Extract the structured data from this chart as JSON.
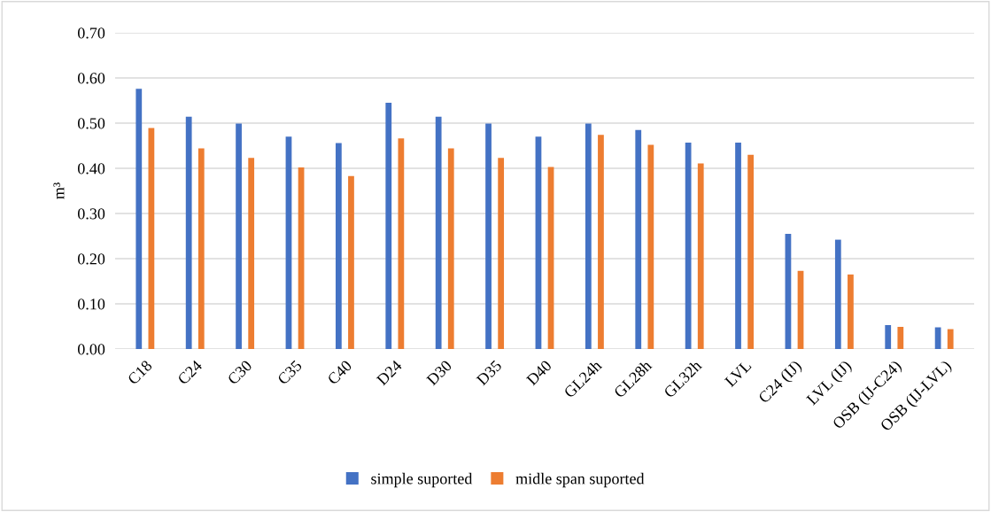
{
  "chart_data": {
    "type": "bar",
    "ylabel": "m³",
    "categories": [
      "C18",
      "C24",
      "C30",
      "C35",
      "C40",
      "D24",
      "D30",
      "D35",
      "D40",
      "GL24h",
      "GL28h",
      "GL32h",
      "LVL",
      "C24 (IJ)",
      "LVL (IJ)",
      "OSB (IJ-C24)",
      "OSB (IJ-LVL)"
    ],
    "series": [
      {
        "name": "simple suported",
        "color": "#4472c4",
        "values": [
          0.576,
          0.514,
          0.499,
          0.47,
          0.456,
          0.545,
          0.514,
          0.499,
          0.47,
          0.499,
          0.485,
          0.457,
          0.457,
          0.255,
          0.242,
          0.053,
          0.048
        ]
      },
      {
        "name": "midle span suported",
        "color": "#ed7d31",
        "values": [
          0.489,
          0.444,
          0.423,
          0.402,
          0.383,
          0.466,
          0.444,
          0.423,
          0.403,
          0.474,
          0.452,
          0.411,
          0.43,
          0.173,
          0.165,
          0.049,
          0.044
        ]
      }
    ],
    "ylim": [
      0,
      0.7
    ],
    "yticks": [
      {
        "value": 0,
        "label": "0.00"
      },
      {
        "value": 0.1,
        "label": "0.10"
      },
      {
        "value": 0.2,
        "label": "0.20"
      },
      {
        "value": 0.3,
        "label": "0.30"
      },
      {
        "value": 0.4,
        "label": "0.40"
      },
      {
        "value": 0.5,
        "label": "0.50"
      },
      {
        "value": 0.6,
        "label": "0.60"
      },
      {
        "value": 0.7,
        "label": "0.70"
      }
    ],
    "grid": "y",
    "legend": "bottom"
  }
}
